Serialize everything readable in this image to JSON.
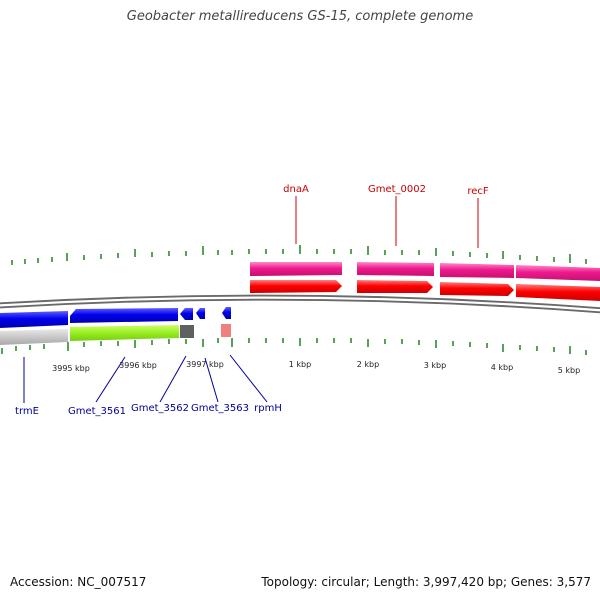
{
  "title": "Geobacter metallireducens GS-15, complete genome",
  "footer": {
    "accession": "Accession: NC_007517",
    "summary": "Topology: circular; Length: 3,997,420 bp; Genes: 3,577"
  },
  "scale_labels": [
    "3995 kbp",
    "3996 kbp",
    "3997 kbp",
    "1 kbp",
    "2 kbp",
    "3 kbp",
    "4 kbp",
    "5 kbp"
  ],
  "forward_gene_labels": [
    "dnaA",
    "Gmet_0002",
    "recF"
  ],
  "reverse_gene_labels": [
    "trmE",
    "Gmet_3561",
    "Gmet_3562",
    "Gmet_3563",
    "rpmH"
  ],
  "colors": {
    "backbone": "#808080",
    "cds_forward": "#ff0000",
    "gene_forward": "#ee1a8e",
    "cds_reverse": "#0000ee",
    "gene_reverse_green": "#99ee22",
    "gene_reverse_gray": "#c0c0c0",
    "gene_dark": "#606060",
    "gene_pink": "#f08080",
    "ticks": "#2e8b2e",
    "forward_label": "#cc0000",
    "reverse_label": "#000099"
  }
}
